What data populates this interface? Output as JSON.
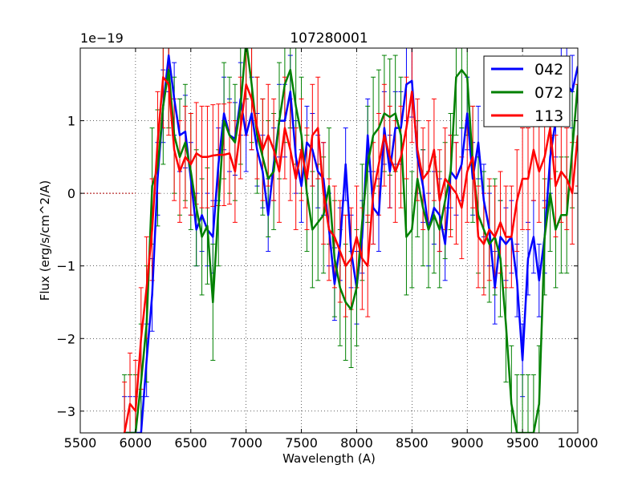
{
  "chart_data": {
    "type": "line",
    "title": "107280001",
    "xlabel": "Wavelength (A)",
    "ylabel": "Flux (erg/s/cm^2/A)",
    "offset_label": "1e−19",
    "xlim": [
      5500,
      10000
    ],
    "ylim": [
      -3.3,
      2.0
    ],
    "xticks": [
      5500,
      6000,
      6500,
      7000,
      7500,
      8000,
      8500,
      9000,
      9500,
      10000
    ],
    "yticks": [
      -3,
      -2,
      -1,
      0,
      1
    ],
    "ytick_labels": [
      "−3",
      "−2",
      "−1",
      "0",
      "1"
    ],
    "grid": true,
    "legend_position": "top-right",
    "zero_line": 0,
    "x": [
      5900,
      5950,
      6000,
      6050,
      6100,
      6150,
      6200,
      6250,
      6300,
      6350,
      6400,
      6450,
      6500,
      6550,
      6600,
      6650,
      6700,
      6750,
      6800,
      6850,
      6900,
      6950,
      7000,
      7050,
      7100,
      7150,
      7200,
      7250,
      7300,
      7350,
      7400,
      7450,
      7500,
      7550,
      7600,
      7650,
      7700,
      7750,
      7800,
      7850,
      7900,
      7950,
      8000,
      8050,
      8100,
      8150,
      8200,
      8250,
      8300,
      8350,
      8400,
      8450,
      8500,
      8550,
      8600,
      8650,
      8700,
      8750,
      8800,
      8850,
      8900,
      8950,
      9000,
      9050,
      9100,
      9150,
      9200,
      9250,
      9300,
      9350,
      9400,
      9450,
      9500,
      9550,
      9600,
      9650,
      9700,
      9750,
      9800,
      9850,
      9900,
      9950,
      10000
    ],
    "series": [
      {
        "name": "042",
        "color": "#0000ff",
        "error": 0.5,
        "values": [
          -3.3,
          -3.3,
          -3.3,
          -3.3,
          -2.3,
          -1.4,
          0.2,
          1.2,
          1.9,
          1.3,
          0.8,
          0.85,
          0.2,
          -0.5,
          -0.3,
          -0.5,
          -0.6,
          0.4,
          1.1,
          0.8,
          0.75,
          1.3,
          0.8,
          1.1,
          0.6,
          0.3,
          -0.3,
          0.4,
          1.0,
          1.0,
          1.4,
          0.5,
          0.1,
          0.7,
          0.6,
          0.3,
          0.2,
          -0.5,
          -1.25,
          -0.7,
          0.4,
          -0.8,
          -1.3,
          -0.6,
          0.8,
          -0.2,
          -0.3,
          0.9,
          0.3,
          0.9,
          0.9,
          1.5,
          1.55,
          0.5,
          0.1,
          -0.5,
          -0.2,
          -0.3,
          -0.7,
          0.3,
          0.2,
          0.4,
          1.1,
          0.2,
          0.7,
          -0.1,
          -0.5,
          -1.3,
          -0.6,
          -0.7,
          -0.6,
          -1.2,
          -2.3,
          -0.9,
          -0.6,
          -1.2,
          -0.6,
          0.5,
          1.0,
          1.7,
          1.5,
          1.4,
          1.75
        ]
      },
      {
        "name": "072",
        "color": "#008000",
        "error": 0.8,
        "values": [
          -3.3,
          -3.3,
          -3.3,
          -2.6,
          -1.8,
          0.1,
          0.35,
          1.2,
          1.7,
          0.8,
          0.5,
          0.7,
          0.3,
          -0.2,
          -0.6,
          -0.45,
          -1.5,
          -0.2,
          1.0,
          0.8,
          0.7,
          1.2,
          2.1,
          1.5,
          0.8,
          0.5,
          0.2,
          0.3,
          1.0,
          1.5,
          1.7,
          1.2,
          0.8,
          0.0,
          -0.5,
          -0.4,
          -0.3,
          0.1,
          -0.9,
          -1.3,
          -1.5,
          -1.6,
          -1.3,
          -0.4,
          0.4,
          0.8,
          0.9,
          1.1,
          1.05,
          1.1,
          0.8,
          -0.6,
          -0.5,
          0.2,
          -0.2,
          -0.5,
          -0.3,
          -0.5,
          -0.1,
          0.3,
          1.6,
          1.7,
          1.6,
          0.4,
          -0.3,
          -0.5,
          -0.7,
          -0.6,
          -0.9,
          -1.8,
          -2.9,
          -3.3,
          -3.3,
          -3.3,
          -3.3,
          -2.9,
          -0.6,
          0.0,
          -0.5,
          -0.3,
          -0.3,
          0.6,
          1.5
        ]
      },
      {
        "name": "113",
        "color": "#ff0000",
        "error": 0.7,
        "values": [
          -3.3,
          -2.9,
          -3.0,
          -2.0,
          -1.3,
          -0.5,
          0.7,
          1.6,
          1.5,
          0.6,
          0.3,
          0.5,
          0.4,
          0.55,
          0.5,
          0.5,
          0.52,
          0.53,
          0.53,
          0.55,
          0.3,
          0.9,
          1.5,
          1.3,
          0.9,
          0.6,
          0.8,
          0.6,
          0.3,
          0.9,
          0.6,
          0.2,
          0.6,
          0.2,
          0.8,
          0.9,
          0.0,
          -0.5,
          -0.6,
          -0.8,
          -1.0,
          -0.9,
          -0.6,
          -0.9,
          -1.0,
          0.0,
          0.4,
          0.8,
          0.5,
          0.3,
          0.5,
          0.9,
          1.4,
          0.6,
          0.2,
          0.3,
          0.6,
          -0.1,
          0.2,
          0.1,
          0.0,
          -0.2,
          0.3,
          0.5,
          -0.6,
          -0.7,
          -0.5,
          -0.6,
          -0.4,
          -0.6,
          -0.6,
          -0.1,
          0.2,
          0.2,
          0.6,
          0.3,
          0.5,
          0.9,
          0.1,
          0.3,
          0.2,
          0.0,
          0.8
        ]
      }
    ]
  }
}
